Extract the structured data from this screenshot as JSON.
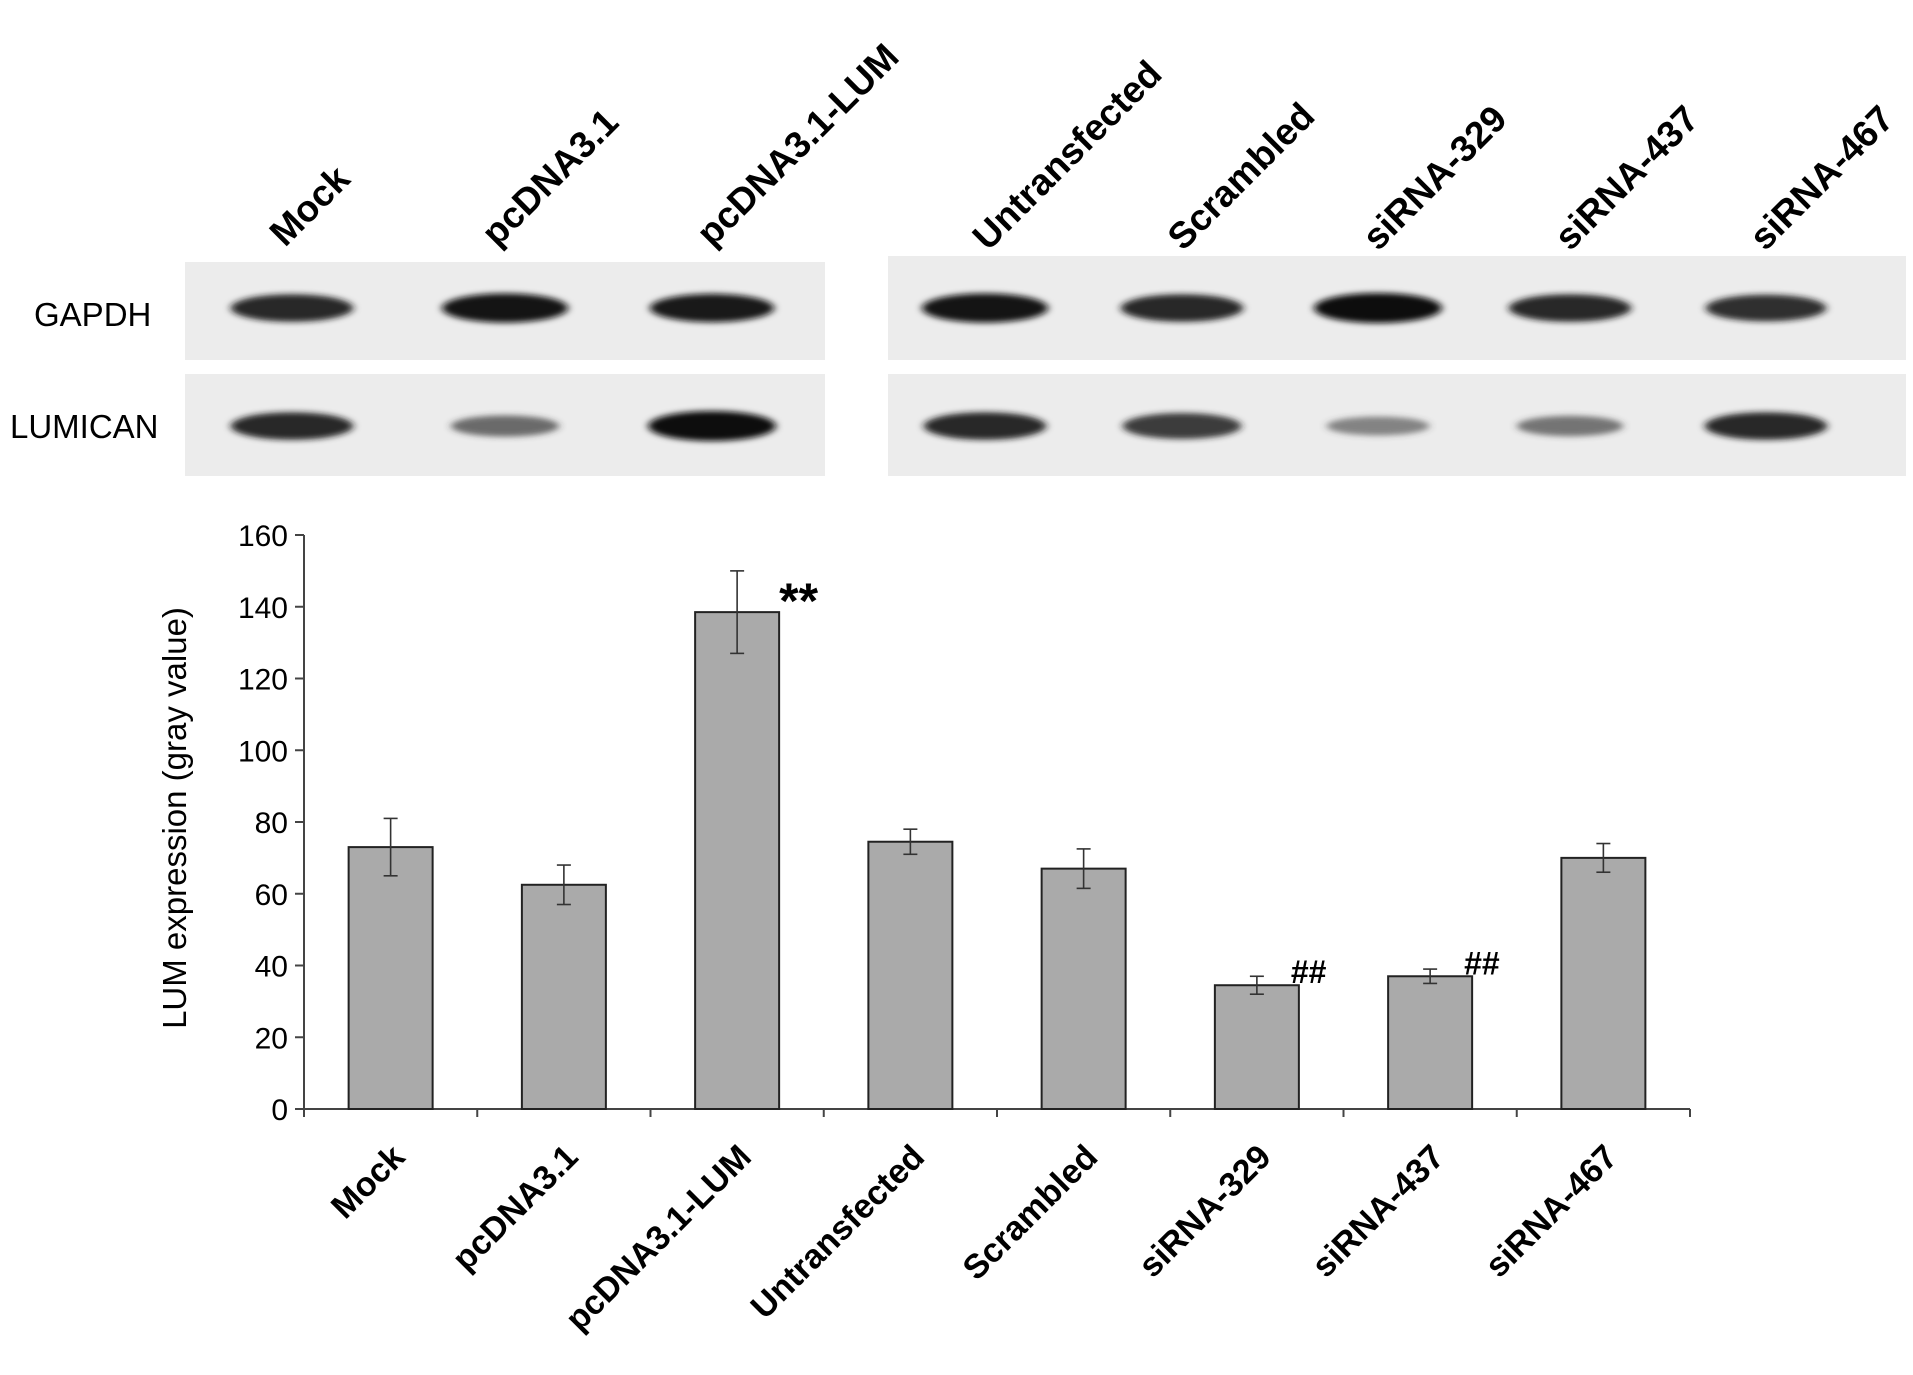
{
  "blot": {
    "lanes_left": [
      "Mock",
      "pcDNA3.1",
      "pcDNA3.1-LUM"
    ],
    "lanes_right": [
      "Untransfected",
      "Scrambled",
      "siRNA-329",
      "siRNA-437",
      "siRNA-467"
    ],
    "row_labels": [
      "GAPDH",
      "LUMICAN"
    ],
    "band_intensity": {
      "GAPDH": [
        0.85,
        0.95,
        0.9,
        0.95,
        0.85,
        1.0,
        0.85,
        0.8
      ],
      "LUMICAN": [
        0.85,
        0.45,
        1.0,
        0.85,
        0.75,
        0.3,
        0.4,
        0.85
      ]
    }
  },
  "colors": {
    "bar_fill": "#aaaaaa",
    "bar_stroke": "#222222",
    "axis": "#444444",
    "text": "#000000"
  },
  "chart_data": {
    "type": "bar",
    "categories": [
      "Mock",
      "pcDNA3.1",
      "pcDNA3.1-LUM",
      "Untransfected",
      "Scrambled",
      "siRNA-329",
      "siRNA-437",
      "siRNA-467"
    ],
    "values": [
      73,
      62.5,
      138.5,
      74.5,
      67,
      34.5,
      37,
      70
    ],
    "errors": [
      8,
      5.5,
      11.5,
      3.5,
      5.5,
      2.5,
      2,
      4
    ],
    "annotations": [
      "",
      "",
      "**",
      "",
      "",
      "##",
      "##",
      ""
    ],
    "xlabel": "",
    "ylabel": "LUM expression (gray value)",
    "ylim": [
      0,
      160
    ],
    "yticks": [
      0,
      20,
      40,
      60,
      80,
      100,
      120,
      140,
      160
    ],
    "grid": false,
    "legend": "none"
  }
}
